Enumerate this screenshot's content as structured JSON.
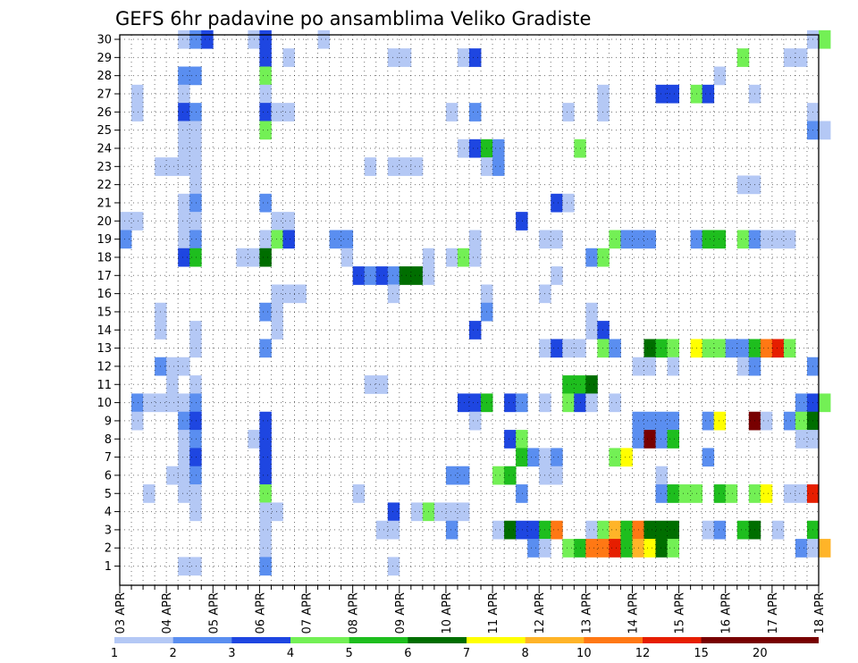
{
  "chart_data": {
    "type": "heatmap",
    "title": "GEFS 6hr padavine po ansamblima Veliko Gradiste",
    "x_tick_labels": [
      "03 APR",
      "04 APR",
      "05 APR",
      "06 APR",
      "07 APR",
      "08 APR",
      "09 APR",
      "10 APR",
      "11 APR",
      "12 APR",
      "13 APR",
      "14 APR",
      "15 APR",
      "16 APR",
      "17 APR",
      "18 APR"
    ],
    "y_tick_labels": [
      "1",
      "2",
      "3",
      "4",
      "5",
      "6",
      "7",
      "8",
      "9",
      "10",
      "11",
      "12",
      "13",
      "14",
      "15",
      "16",
      "17",
      "18",
      "19",
      "20",
      "21",
      "22",
      "23",
      "24",
      "25",
      "26",
      "27",
      "28",
      "29",
      "30"
    ],
    "x_range": [
      0,
      60
    ],
    "y_range": [
      1,
      30
    ],
    "grid": true,
    "colorbar": {
      "placement": "bottom",
      "colors": [
        "#b4c8f5",
        "#5a8ef0",
        "#1e46e1",
        "#73f055",
        "#1ebe1e",
        "#006e00",
        "#ffff00",
        "#ffb428",
        "#ff7814",
        "#e61e00",
        "#780000"
      ],
      "labels": [
        "1",
        "2",
        "3",
        "4",
        "5",
        "6",
        "7",
        "8",
        "10",
        "12",
        "15",
        "20"
      ]
    },
    "cells": [
      [
        5,
        30,
        1
      ],
      [
        6,
        30,
        2
      ],
      [
        7,
        30,
        3
      ],
      [
        11,
        30,
        1
      ],
      [
        12,
        30,
        3
      ],
      [
        17,
        30,
        1
      ],
      [
        59,
        30,
        1
      ],
      [
        60,
        30,
        4
      ],
      [
        12,
        29,
        3
      ],
      [
        14,
        29,
        1
      ],
      [
        23,
        29,
        1
      ],
      [
        24,
        29,
        1
      ],
      [
        29,
        29,
        1
      ],
      [
        30,
        29,
        3
      ],
      [
        53,
        29,
        4
      ],
      [
        57,
        29,
        1
      ],
      [
        58,
        29,
        1
      ],
      [
        5,
        28,
        2
      ],
      [
        6,
        28,
        2
      ],
      [
        12,
        28,
        4
      ],
      [
        51,
        28,
        1
      ],
      [
        1,
        27,
        1
      ],
      [
        5,
        27,
        1
      ],
      [
        12,
        27,
        1
      ],
      [
        41,
        27,
        1
      ],
      [
        46,
        27,
        3
      ],
      [
        47,
        27,
        3
      ],
      [
        49,
        27,
        4
      ],
      [
        50,
        27,
        3
      ],
      [
        54,
        27,
        1
      ],
      [
        1,
        26,
        1
      ],
      [
        5,
        26,
        3
      ],
      [
        6,
        26,
        2
      ],
      [
        12,
        26,
        3
      ],
      [
        13,
        26,
        1
      ],
      [
        14,
        26,
        1
      ],
      [
        28,
        26,
        1
      ],
      [
        30,
        26,
        2
      ],
      [
        38,
        26,
        1
      ],
      [
        41,
        26,
        1
      ],
      [
        59,
        26,
        1
      ],
      [
        5,
        25,
        1
      ],
      [
        6,
        25,
        1
      ],
      [
        12,
        25,
        4
      ],
      [
        59,
        25,
        2
      ],
      [
        60,
        25,
        1
      ],
      [
        5,
        24,
        1
      ],
      [
        6,
        24,
        1
      ],
      [
        29,
        24,
        1
      ],
      [
        30,
        24,
        3
      ],
      [
        31,
        24,
        5
      ],
      [
        32,
        24,
        2
      ],
      [
        39,
        24,
        4
      ],
      [
        3,
        23,
        1
      ],
      [
        4,
        23,
        1
      ],
      [
        5,
        23,
        1
      ],
      [
        6,
        23,
        1
      ],
      [
        21,
        23,
        1
      ],
      [
        23,
        23,
        1
      ],
      [
        24,
        23,
        1
      ],
      [
        25,
        23,
        1
      ],
      [
        31,
        23,
        1
      ],
      [
        32,
        23,
        2
      ],
      [
        6,
        22,
        1
      ],
      [
        53,
        22,
        1
      ],
      [
        54,
        22,
        1
      ],
      [
        5,
        21,
        1
      ],
      [
        6,
        21,
        2
      ],
      [
        12,
        21,
        2
      ],
      [
        37,
        21,
        3
      ],
      [
        38,
        21,
        1
      ],
      [
        0,
        20,
        1
      ],
      [
        1,
        20,
        1
      ],
      [
        5,
        20,
        1
      ],
      [
        6,
        20,
        1
      ],
      [
        13,
        20,
        1
      ],
      [
        14,
        20,
        1
      ],
      [
        34,
        20,
        3
      ],
      [
        0,
        19,
        2
      ],
      [
        5,
        19,
        1
      ],
      [
        6,
        19,
        2
      ],
      [
        12,
        19,
        1
      ],
      [
        13,
        19,
        4
      ],
      [
        14,
        19,
        3
      ],
      [
        18,
        19,
        2
      ],
      [
        19,
        19,
        2
      ],
      [
        30,
        19,
        1
      ],
      [
        36,
        19,
        1
      ],
      [
        37,
        19,
        1
      ],
      [
        42,
        19,
        4
      ],
      [
        43,
        19,
        2
      ],
      [
        44,
        19,
        2
      ],
      [
        45,
        19,
        2
      ],
      [
        49,
        19,
        2
      ],
      [
        50,
        19,
        5
      ],
      [
        51,
        19,
        5
      ],
      [
        53,
        19,
        4
      ],
      [
        54,
        19,
        2
      ],
      [
        55,
        19,
        1
      ],
      [
        56,
        19,
        1
      ],
      [
        57,
        19,
        1
      ],
      [
        5,
        18,
        3
      ],
      [
        6,
        18,
        5
      ],
      [
        10,
        18,
        1
      ],
      [
        11,
        18,
        1
      ],
      [
        12,
        18,
        6
      ],
      [
        19,
        18,
        1
      ],
      [
        26,
        18,
        1
      ],
      [
        28,
        18,
        1
      ],
      [
        29,
        18,
        4
      ],
      [
        30,
        18,
        1
      ],
      [
        40,
        18,
        2
      ],
      [
        41,
        18,
        4
      ],
      [
        20,
        17,
        3
      ],
      [
        21,
        17,
        2
      ],
      [
        22,
        17,
        3
      ],
      [
        23,
        17,
        2
      ],
      [
        24,
        17,
        6
      ],
      [
        25,
        17,
        6
      ],
      [
        26,
        17,
        1
      ],
      [
        37,
        17,
        1
      ],
      [
        13,
        16,
        1
      ],
      [
        14,
        16,
        1
      ],
      [
        15,
        16,
        1
      ],
      [
        23,
        16,
        1
      ],
      [
        31,
        16,
        1
      ],
      [
        36,
        16,
        1
      ],
      [
        3,
        15,
        1
      ],
      [
        12,
        15,
        2
      ],
      [
        13,
        15,
        1
      ],
      [
        31,
        15,
        2
      ],
      [
        40,
        15,
        1
      ],
      [
        3,
        14,
        1
      ],
      [
        6,
        14,
        1
      ],
      [
        13,
        14,
        1
      ],
      [
        30,
        14,
        3
      ],
      [
        40,
        14,
        1
      ],
      [
        41,
        14,
        3
      ],
      [
        6,
        13,
        1
      ],
      [
        12,
        13,
        2
      ],
      [
        36,
        13,
        1
      ],
      [
        37,
        13,
        3
      ],
      [
        38,
        13,
        1
      ],
      [
        39,
        13,
        1
      ],
      [
        41,
        13,
        4
      ],
      [
        42,
        13,
        2
      ],
      [
        45,
        13,
        6
      ],
      [
        46,
        13,
        5
      ],
      [
        47,
        13,
        4
      ],
      [
        49,
        13,
        7
      ],
      [
        50,
        13,
        4
      ],
      [
        51,
        13,
        4
      ],
      [
        52,
        13,
        2
      ],
      [
        53,
        13,
        2
      ],
      [
        54,
        13,
        5
      ],
      [
        55,
        13,
        9
      ],
      [
        56,
        13,
        10
      ],
      [
        57,
        13,
        4
      ],
      [
        3,
        12,
        2
      ],
      [
        4,
        12,
        1
      ],
      [
        5,
        12,
        1
      ],
      [
        44,
        12,
        1
      ],
      [
        45,
        12,
        1
      ],
      [
        47,
        12,
        1
      ],
      [
        53,
        12,
        1
      ],
      [
        54,
        12,
        2
      ],
      [
        59,
        12,
        2
      ],
      [
        4,
        11,
        1
      ],
      [
        6,
        11,
        1
      ],
      [
        21,
        11,
        1
      ],
      [
        22,
        11,
        1
      ],
      [
        38,
        11,
        5
      ],
      [
        39,
        11,
        5
      ],
      [
        40,
        11,
        6
      ],
      [
        1,
        10,
        2
      ],
      [
        2,
        10,
        1
      ],
      [
        3,
        10,
        1
      ],
      [
        4,
        10,
        1
      ],
      [
        5,
        10,
        1
      ],
      [
        6,
        10,
        2
      ],
      [
        29,
        10,
        3
      ],
      [
        30,
        10,
        3
      ],
      [
        31,
        10,
        5
      ],
      [
        33,
        10,
        3
      ],
      [
        34,
        10,
        2
      ],
      [
        36,
        10,
        1
      ],
      [
        38,
        10,
        4
      ],
      [
        39,
        10,
        3
      ],
      [
        40,
        10,
        1
      ],
      [
        42,
        10,
        1
      ],
      [
        58,
        10,
        2
      ],
      [
        59,
        10,
        3
      ],
      [
        60,
        10,
        4
      ],
      [
        1,
        9,
        1
      ],
      [
        5,
        9,
        2
      ],
      [
        6,
        9,
        3
      ],
      [
        12,
        9,
        3
      ],
      [
        30,
        9,
        1
      ],
      [
        44,
        9,
        2
      ],
      [
        45,
        9,
        2
      ],
      [
        46,
        9,
        2
      ],
      [
        47,
        9,
        2
      ],
      [
        50,
        9,
        2
      ],
      [
        51,
        9,
        7
      ],
      [
        54,
        9,
        11
      ],
      [
        55,
        9,
        1
      ],
      [
        57,
        9,
        2
      ],
      [
        58,
        9,
        4
      ],
      [
        59,
        9,
        6
      ],
      [
        5,
        8,
        1
      ],
      [
        6,
        8,
        2
      ],
      [
        11,
        8,
        1
      ],
      [
        12,
        8,
        3
      ],
      [
        33,
        8,
        3
      ],
      [
        34,
        8,
        4
      ],
      [
        44,
        8,
        2
      ],
      [
        45,
        8,
        11
      ],
      [
        46,
        8,
        2
      ],
      [
        47,
        8,
        5
      ],
      [
        58,
        8,
        1
      ],
      [
        59,
        8,
        1
      ],
      [
        5,
        7,
        1
      ],
      [
        6,
        7,
        3
      ],
      [
        12,
        7,
        3
      ],
      [
        34,
        7,
        5
      ],
      [
        35,
        7,
        2
      ],
      [
        36,
        7,
        1
      ],
      [
        37,
        7,
        2
      ],
      [
        42,
        7,
        4
      ],
      [
        43,
        7,
        7
      ],
      [
        50,
        7,
        2
      ],
      [
        4,
        6,
        1
      ],
      [
        5,
        6,
        1
      ],
      [
        6,
        6,
        2
      ],
      [
        12,
        6,
        3
      ],
      [
        28,
        6,
        2
      ],
      [
        29,
        6,
        2
      ],
      [
        32,
        6,
        4
      ],
      [
        33,
        6,
        5
      ],
      [
        36,
        6,
        1
      ],
      [
        37,
        6,
        1
      ],
      [
        46,
        6,
        1
      ],
      [
        2,
        5,
        1
      ],
      [
        5,
        5,
        1
      ],
      [
        6,
        5,
        1
      ],
      [
        12,
        5,
        4
      ],
      [
        20,
        5,
        1
      ],
      [
        34,
        5,
        2
      ],
      [
        46,
        5,
        2
      ],
      [
        47,
        5,
        5
      ],
      [
        48,
        5,
        4
      ],
      [
        49,
        5,
        4
      ],
      [
        51,
        5,
        5
      ],
      [
        52,
        5,
        4
      ],
      [
        54,
        5,
        4
      ],
      [
        55,
        5,
        7
      ],
      [
        57,
        5,
        1
      ],
      [
        58,
        5,
        1
      ],
      [
        59,
        5,
        10
      ],
      [
        6,
        4,
        1
      ],
      [
        12,
        4,
        1
      ],
      [
        13,
        4,
        1
      ],
      [
        23,
        4,
        3
      ],
      [
        25,
        4,
        1
      ],
      [
        26,
        4,
        4
      ],
      [
        27,
        4,
        1
      ],
      [
        28,
        4,
        1
      ],
      [
        29,
        4,
        1
      ],
      [
        12,
        3,
        1
      ],
      [
        22,
        3,
        1
      ],
      [
        23,
        3,
        1
      ],
      [
        28,
        3,
        2
      ],
      [
        32,
        3,
        1
      ],
      [
        33,
        3,
        6
      ],
      [
        34,
        3,
        3
      ],
      [
        35,
        3,
        3
      ],
      [
        36,
        3,
        5
      ],
      [
        37,
        3,
        9
      ],
      [
        40,
        3,
        1
      ],
      [
        41,
        3,
        4
      ],
      [
        42,
        3,
        8
      ],
      [
        43,
        3,
        5
      ],
      [
        44,
        3,
        9
      ],
      [
        45,
        3,
        6
      ],
      [
        46,
        3,
        6
      ],
      [
        47,
        3,
        6
      ],
      [
        50,
        3,
        1
      ],
      [
        51,
        3,
        2
      ],
      [
        53,
        3,
        5
      ],
      [
        54,
        3,
        6
      ],
      [
        56,
        3,
        1
      ],
      [
        59,
        3,
        5
      ],
      [
        12,
        2,
        1
      ],
      [
        35,
        2,
        2
      ],
      [
        36,
        2,
        1
      ],
      [
        38,
        2,
        4
      ],
      [
        39,
        2,
        5
      ],
      [
        40,
        2,
        9
      ],
      [
        41,
        2,
        9
      ],
      [
        42,
        2,
        10
      ],
      [
        43,
        2,
        5
      ],
      [
        44,
        2,
        8
      ],
      [
        45,
        2,
        7
      ],
      [
        46,
        2,
        6
      ],
      [
        47,
        2,
        4
      ],
      [
        58,
        2,
        2
      ],
      [
        59,
        2,
        1
      ],
      [
        60,
        2,
        8
      ],
      [
        5,
        1,
        1
      ],
      [
        6,
        1,
        1
      ],
      [
        12,
        1,
        2
      ],
      [
        23,
        1,
        1
      ]
    ]
  }
}
